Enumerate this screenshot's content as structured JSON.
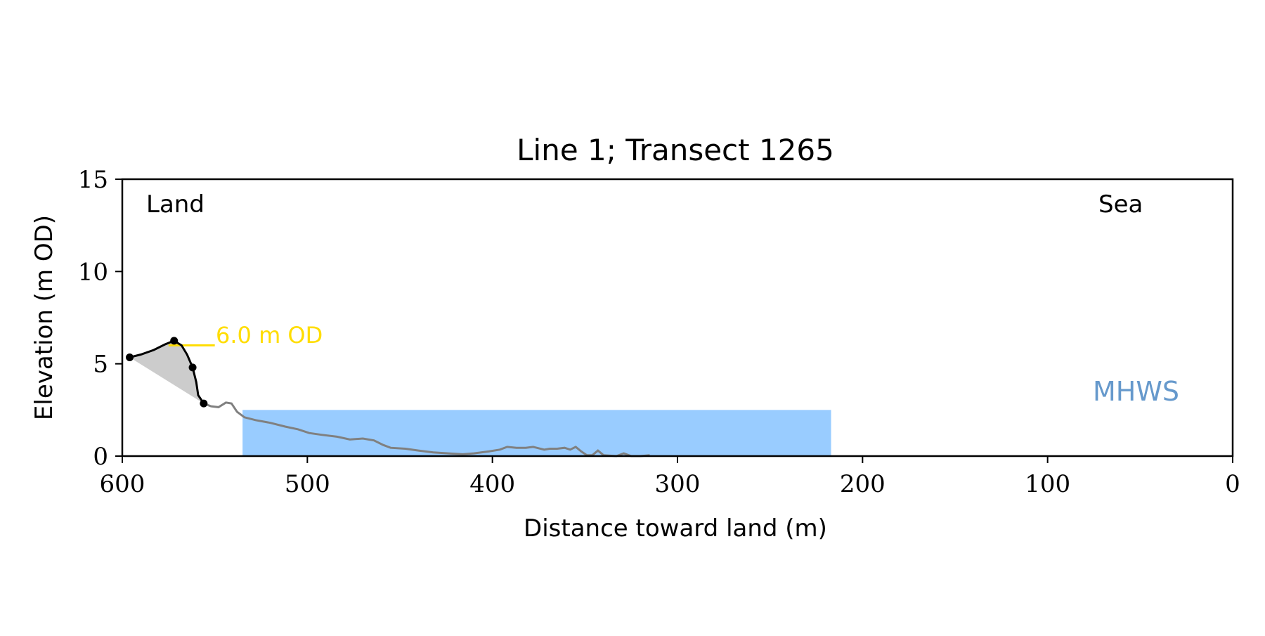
{
  "chart_data": {
    "type": "line",
    "title": "Line 1; Transect 1265",
    "xlabel": "Distance toward land (m)",
    "ylabel": "Elevation (m OD)",
    "xlim": [
      600,
      0
    ],
    "ylim": [
      0,
      15
    ],
    "x_ticks": [
      600,
      500,
      400,
      300,
      200,
      100,
      0
    ],
    "y_ticks": [
      0,
      5,
      10,
      15
    ],
    "grid": false,
    "annotations": {
      "land": "Land",
      "sea": "Sea",
      "mhws_label": "MHWS",
      "threshold_label": "6.0 m OD"
    },
    "threshold": {
      "y": 6.0,
      "x_start": 575,
      "x_end": 550
    },
    "mhws_region": {
      "y": 2.5,
      "x_start": 535,
      "x_end": 217
    },
    "profile_line": {
      "color": "#808080",
      "points": [
        [
          556,
          2.85
        ],
        [
          552,
          2.7
        ],
        [
          548,
          2.65
        ],
        [
          544,
          2.9
        ],
        [
          541,
          2.85
        ],
        [
          538,
          2.4
        ],
        [
          534,
          2.1
        ],
        [
          528,
          1.95
        ],
        [
          520,
          1.8
        ],
        [
          512,
          1.6
        ],
        [
          505,
          1.45
        ],
        [
          499,
          1.25
        ],
        [
          492,
          1.15
        ],
        [
          484,
          1.05
        ],
        [
          477,
          0.9
        ],
        [
          470,
          0.95
        ],
        [
          464,
          0.85
        ],
        [
          459,
          0.6
        ],
        [
          455,
          0.45
        ],
        [
          447,
          0.4
        ],
        [
          440,
          0.3
        ],
        [
          432,
          0.2
        ],
        [
          424,
          0.15
        ],
        [
          416,
          0.1
        ],
        [
          410,
          0.15
        ],
        [
          402,
          0.25
        ],
        [
          396,
          0.35
        ],
        [
          392,
          0.5
        ],
        [
          387,
          0.45
        ],
        [
          382,
          0.45
        ],
        [
          378,
          0.5
        ],
        [
          372,
          0.35
        ],
        [
          369,
          0.4
        ],
        [
          365,
          0.4
        ],
        [
          361,
          0.45
        ],
        [
          358,
          0.35
        ],
        [
          355,
          0.5
        ],
        [
          352,
          0.25
        ],
        [
          349,
          0.05
        ],
        [
          346,
          0.05
        ],
        [
          343,
          0.3
        ],
        [
          340,
          0.05
        ],
        [
          333,
          0.0
        ],
        [
          329,
          0.15
        ],
        [
          325,
          0.0
        ],
        [
          320,
          0.0
        ],
        [
          315,
          0.05
        ]
      ]
    },
    "dune_profile": {
      "color": "#000000",
      "points": [
        [
          596,
          5.35
        ],
        [
          590,
          5.5
        ],
        [
          583,
          5.75
        ],
        [
          577,
          6.05
        ],
        [
          572,
          6.25
        ],
        [
          568,
          6.0
        ],
        [
          565,
          5.5
        ],
        [
          562,
          4.8
        ],
        [
          560,
          4.0
        ],
        [
          559,
          3.3
        ],
        [
          556,
          2.85
        ]
      ]
    },
    "key_points": [
      {
        "x": 596,
        "y": 5.35
      },
      {
        "x": 572,
        "y": 6.25
      },
      {
        "x": 562,
        "y": 4.8
      },
      {
        "x": 556,
        "y": 2.85
      }
    ],
    "colors": {
      "mhws_fill": "#99ccff",
      "mhws_text": "#6699cc",
      "threshold": "#ffdd00",
      "dune_fill": "#cccccc",
      "profile": "#808080",
      "dune_line": "#000000"
    }
  }
}
